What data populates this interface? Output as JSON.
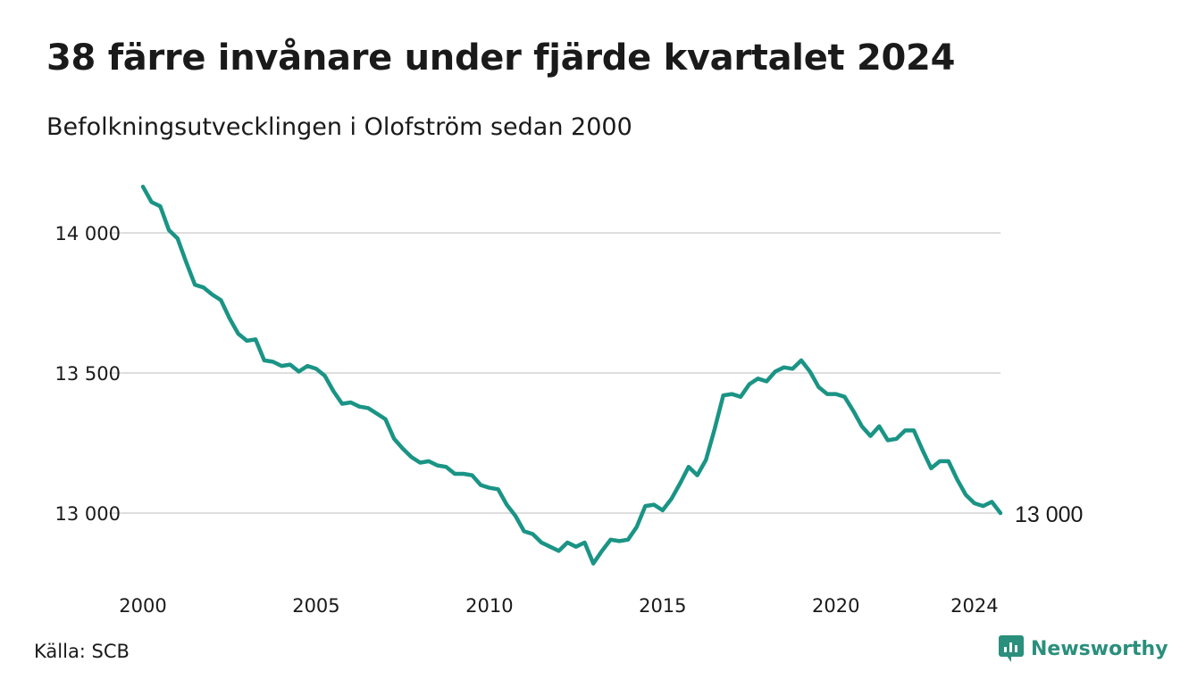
{
  "header": {
    "title": "38 färre invånare under fjärde kvartalet 2024",
    "subtitle": "Befolkningsutvecklingen i Olofström sedan 2000"
  },
  "footer": {
    "source": "Källa: SCB",
    "brand": "Newsworthy",
    "brand_color": "#2a8f7c"
  },
  "chart_data": {
    "type": "line",
    "title": "38 färre invånare under fjärde kvartalet 2024",
    "subtitle": "Befolkningsutvecklingen i Olofström sedan 2000",
    "xlabel": "",
    "ylabel": "",
    "x_ticks": [
      2000,
      2005,
      2010,
      2015,
      2020,
      2024
    ],
    "y_ticks": [
      13000,
      13500,
      14000
    ],
    "y_tick_labels": [
      "13 000",
      "13 500",
      "14 000"
    ],
    "xlim": [
      2000,
      2024.75
    ],
    "ylim": [
      12800,
      14170
    ],
    "grid": "horizontal",
    "line_color": "#1a9485",
    "end_label": "13 000",
    "series": [
      {
        "start": 2000,
        "step": 0.25,
        "values": [
          14165,
          14110,
          14095,
          14010,
          13980,
          13895,
          13815,
          13805,
          13780,
          13760,
          13695,
          13640,
          13615,
          13620,
          13545,
          13540,
          13525,
          13530,
          13505,
          13525,
          13515,
          13490,
          13435,
          13390,
          13395,
          13380,
          13375,
          13355,
          13335,
          13265,
          13230,
          13200,
          13180,
          13185,
          13170,
          13165,
          13140,
          13140,
          13135,
          13100,
          13090,
          13085,
          13030,
          12990,
          12935,
          12925,
          12895,
          12880,
          12865,
          12895,
          12880,
          12895,
          12820,
          12865,
          12905,
          12900,
          12905,
          12950,
          13025,
          13030,
          13010,
          13050,
          13105,
          13165,
          13135,
          13190,
          13300,
          13420,
          13425,
          13415,
          13460,
          13480,
          13470,
          13505,
          13520,
          13515,
          13545,
          13505,
          13450,
          13425,
          13425,
          13415,
          13365,
          13310,
          13275,
          13310,
          13260,
          13265,
          13295,
          13295,
          13225,
          13160,
          13185,
          13185,
          13120,
          13065,
          13035,
          13025,
          13040,
          13000
        ]
      }
    ]
  }
}
